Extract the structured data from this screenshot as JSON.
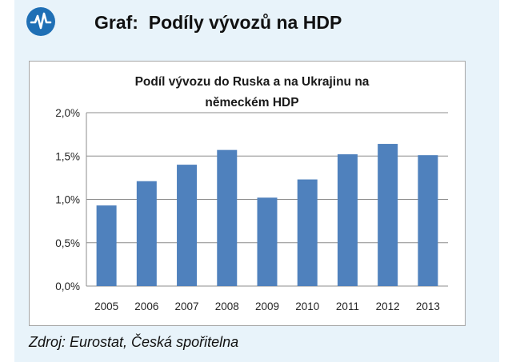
{
  "page": {
    "title": "Graf:  Podíly vývozů na HDP",
    "source": "Zdroj: Eurostat, Česká spořitelna"
  },
  "colors": {
    "bar": "#4f81bd",
    "background_panel": "#e8f3fa",
    "logo": "#1f6fb5"
  },
  "icons": {
    "logo": "pulse-logo-icon"
  },
  "chart_data": {
    "type": "bar",
    "title_lines": [
      "Podíl vývozu do Ruska a na Ukrajinu na",
      "německém HDP"
    ],
    "categories": [
      "2005",
      "2006",
      "2007",
      "2008",
      "2009",
      "2010",
      "2011",
      "2012",
      "2013"
    ],
    "values": [
      0.93,
      1.21,
      1.4,
      1.57,
      1.02,
      1.23,
      1.52,
      1.64,
      1.51
    ],
    "unit": "%",
    "ylim": [
      0,
      2.0
    ],
    "yticks": [
      "0,0%",
      "0,5%",
      "1,0%",
      "1,5%",
      "2,0%"
    ],
    "xlabel": "",
    "ylabel": "",
    "grid": true,
    "legend": "none"
  }
}
